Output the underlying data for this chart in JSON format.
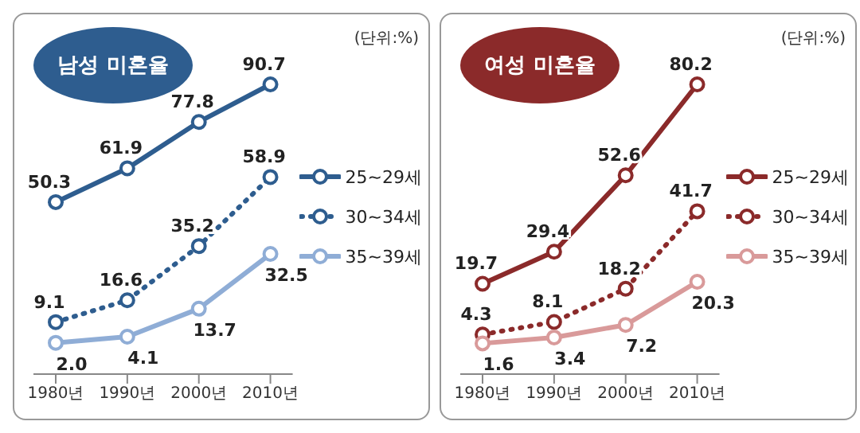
{
  "chart_data": [
    {
      "type": "line",
      "title": "남성 미혼율",
      "categories": [
        "1980년",
        "1990년",
        "2000년",
        "2010년"
      ],
      "series": [
        {
          "name": "25~29세",
          "color": "#2e5d8f",
          "line_style": "solid",
          "values": [
            50.3,
            61.9,
            77.8,
            90.7
          ],
          "value_labels": [
            "50.3",
            "61.9",
            "77.8",
            "90.7"
          ]
        },
        {
          "name": "30~34세",
          "color": "#2e5d8f",
          "line_style": "dotted",
          "values": [
            9.1,
            16.6,
            35.2,
            58.9
          ],
          "value_labels": [
            "9.1",
            "16.6",
            "35.2",
            "58.9"
          ]
        },
        {
          "name": "35~39세",
          "color": "#8fadd6",
          "line_style": "solid",
          "values": [
            2.0,
            4.1,
            13.7,
            32.5
          ],
          "value_labels": [
            "2.0",
            "4.1",
            "13.7",
            "32.5"
          ]
        }
      ],
      "annotations": [
        "(단위:%)"
      ],
      "legend": "right",
      "marker": "circle",
      "tick_labels": "x"
    },
    {
      "type": "line",
      "title": "여성 미혼율",
      "categories": [
        "1980년",
        "1990년",
        "2000년",
        "2010년"
      ],
      "series": [
        {
          "name": "25~29세",
          "color": "#8b2a2a",
          "line_style": "solid",
          "values": [
            19.7,
            29.4,
            52.6,
            80.2
          ],
          "value_labels": [
            "19.7",
            "29.4",
            "52.6",
            "80.2"
          ]
        },
        {
          "name": "30~34세",
          "color": "#8b2a2a",
          "line_style": "dotted",
          "values": [
            4.3,
            8.1,
            18.2,
            41.7
          ],
          "value_labels": [
            "4.3",
            "8.1",
            "18.2",
            "41.7"
          ]
        },
        {
          "name": "35~39세",
          "color": "#d99a9a",
          "line_style": "solid",
          "values": [
            1.6,
            3.4,
            7.2,
            20.3
          ],
          "value_labels": [
            "1.6",
            "3.4",
            "7.2",
            "20.3"
          ]
        }
      ],
      "annotations": [
        "(단위:%)"
      ],
      "legend": "right",
      "marker": "circle",
      "tick_labels": "x"
    }
  ]
}
